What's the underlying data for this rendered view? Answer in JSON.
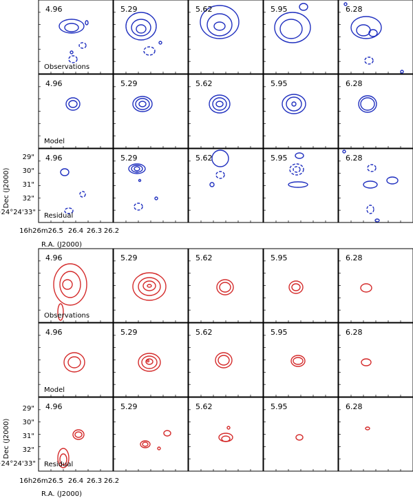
{
  "figure": {
    "velocity_labels": [
      "4.96",
      "5.29",
      "5.62",
      "5.95",
      "6.28"
    ],
    "top_block": {
      "color": "#1f2fbf",
      "row_labels": [
        "Observations",
        "Model",
        "Residual"
      ]
    },
    "bottom_block": {
      "color": "#d42a2a",
      "row_labels": [
        "Observations",
        "Model",
        "Residual"
      ]
    },
    "axes": {
      "ylabel": "Dec (J2000)",
      "xlabel": "R.A. (J2000)",
      "y_ticks": [
        "29\"",
        "30\"",
        "31\"",
        "32\"",
        "−24°24'33\""
      ],
      "x_ticks": [
        "16h26m26.5",
        "26.4",
        "26.3",
        "26.2"
      ]
    }
  }
}
